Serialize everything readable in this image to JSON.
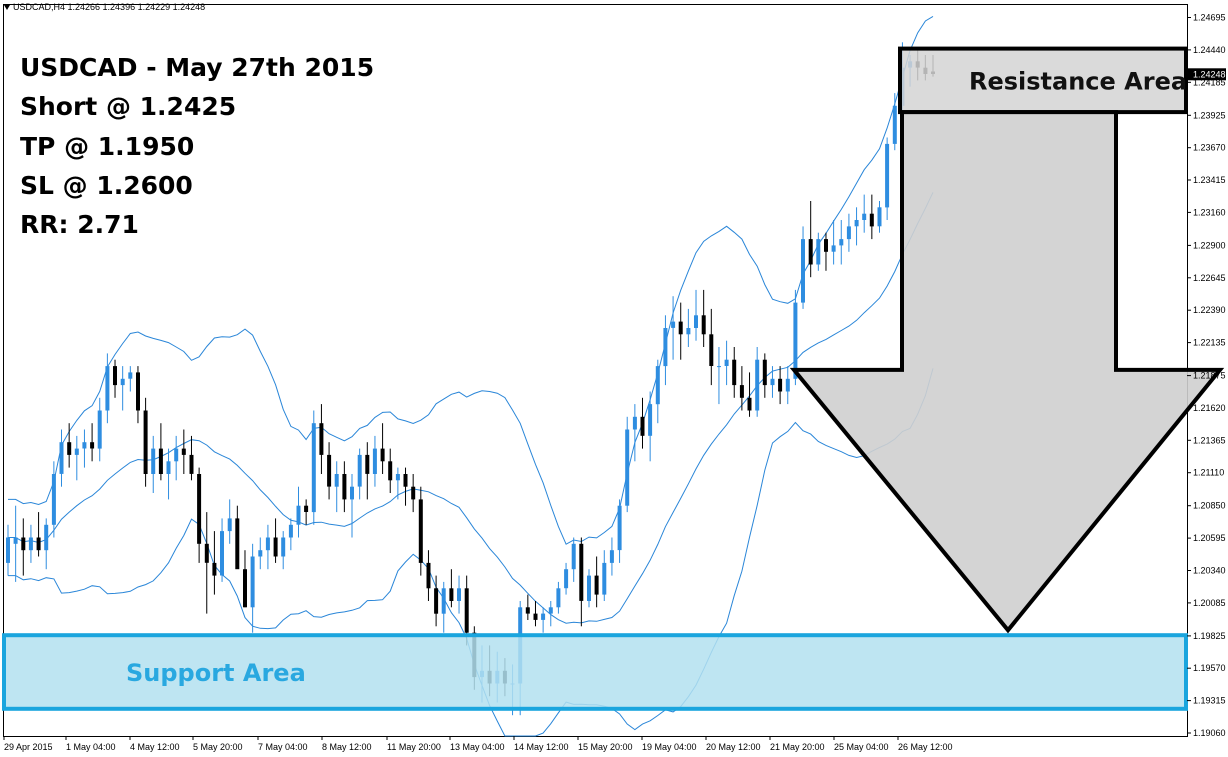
{
  "header": {
    "text": "USDCAD,H4  1.24266 1.24396 1.24229 1.24248"
  },
  "notes": [
    "USDCAD - May 27th 2015",
    "Short @ 1.2425",
    "TP @ 1.1950",
    "SL @ 1.2600",
    "RR: 2.71"
  ],
  "chart_data": {
    "type": "candlestick",
    "symbol": "USDCAD",
    "timeframe": "H4",
    "ylim": [
      1.1906,
      1.2477
    ],
    "y_ticks": [
      "1.24695",
      "1.24440",
      "1.24185",
      "1.23925",
      "1.23670",
      "1.23415",
      "1.23160",
      "1.22900",
      "1.22645",
      "1.22390",
      "1.22135",
      "1.21875",
      "1.21620",
      "1.21365",
      "1.21110",
      "1.20850",
      "1.20595",
      "1.20340",
      "1.20085",
      "1.19825",
      "1.19570",
      "1.19315",
      "1.19060"
    ],
    "x_ticks": [
      "29 Apr 2015",
      "1 May 04:00",
      "4 May 12:00",
      "5 May 20:00",
      "7 May 04:00",
      "8 May 12:00",
      "11 May 20:00",
      "13 May 04:00",
      "14 May 12:00",
      "15 May 20:00",
      "19 May 04:00",
      "20 May 12:00",
      "21 May 20:00",
      "25 May 04:00",
      "26 May 12:00"
    ],
    "last_price": "1.24248",
    "colors": {
      "up": "#2e8de0",
      "down": "#000000",
      "bands": "#2a86d8",
      "support_fill": "#b3e1f0",
      "support_border": "#1aa5de",
      "resistance_fill": "#d3d3d3",
      "arrow_fill": "#cfcfcf"
    },
    "candles": [
      [
        1.204,
        1.207,
        1.203,
        1.206
      ],
      [
        1.2055,
        1.2085,
        1.2025,
        1.206
      ],
      [
        1.206,
        1.2075,
        1.203,
        1.205
      ],
      [
        1.205,
        1.207,
        1.204,
        1.206
      ],
      [
        1.206,
        1.208,
        1.2045,
        1.205
      ],
      [
        1.205,
        1.2075,
        1.2035,
        1.207
      ],
      [
        1.207,
        1.212,
        1.206,
        1.211
      ],
      [
        1.211,
        1.2145,
        1.21,
        1.2135
      ],
      [
        1.2135,
        1.215,
        1.2115,
        1.2125
      ],
      [
        1.2125,
        1.214,
        1.2105,
        1.213
      ],
      [
        1.213,
        1.2145,
        1.2115,
        1.2135
      ],
      [
        1.2135,
        1.215,
        1.212,
        1.213
      ],
      [
        1.213,
        1.217,
        1.212,
        1.216
      ],
      [
        1.216,
        1.2205,
        1.215,
        1.2195
      ],
      [
        1.2195,
        1.22,
        1.217,
        1.218
      ],
      [
        1.218,
        1.2195,
        1.216,
        1.2185
      ],
      [
        1.2185,
        1.2195,
        1.2175,
        1.219
      ],
      [
        1.219,
        1.2195,
        1.215,
        1.216
      ],
      [
        1.216,
        1.217,
        1.21,
        1.211
      ],
      [
        1.211,
        1.214,
        1.2095,
        1.213
      ],
      [
        1.213,
        1.215,
        1.2105,
        1.211
      ],
      [
        1.211,
        1.213,
        1.209,
        1.212
      ],
      [
        1.212,
        1.214,
        1.2105,
        1.213
      ],
      [
        1.213,
        1.2145,
        1.211,
        1.2125
      ],
      [
        1.2125,
        1.214,
        1.2105,
        1.211
      ],
      [
        1.211,
        1.2115,
        1.204,
        1.2055
      ],
      [
        1.2055,
        1.208,
        1.2,
        1.204
      ],
      [
        1.204,
        1.2065,
        1.2015,
        1.203
      ],
      [
        1.203,
        1.2075,
        1.2025,
        1.2065
      ],
      [
        1.2065,
        1.209,
        1.2055,
        1.2075
      ],
      [
        1.2075,
        1.2085,
        1.204,
        1.2035
      ],
      [
        1.2035,
        1.205,
        1.2005,
        1.2005
      ],
      [
        1.2005,
        1.2055,
        1.1985,
        1.2045
      ],
      [
        1.2045,
        1.206,
        1.2035,
        1.205
      ],
      [
        1.205,
        1.207,
        1.2035,
        1.206
      ],
      [
        1.206,
        1.2075,
        1.204,
        1.2045
      ],
      [
        1.2045,
        1.2065,
        1.2035,
        1.206
      ],
      [
        1.206,
        1.2075,
        1.205,
        1.207
      ],
      [
        1.207,
        1.21,
        1.206,
        1.2085
      ],
      [
        1.2085,
        1.209,
        1.207,
        1.208
      ],
      [
        1.208,
        1.216,
        1.207,
        1.215
      ],
      [
        1.215,
        1.2165,
        1.211,
        1.2125
      ],
      [
        1.2125,
        1.2135,
        1.209,
        1.21
      ],
      [
        1.21,
        1.212,
        1.208,
        1.211
      ],
      [
        1.211,
        1.212,
        1.208,
        1.209
      ],
      [
        1.209,
        1.211,
        1.206,
        1.21
      ],
      [
        1.21,
        1.213,
        1.209,
        1.2125
      ],
      [
        1.2125,
        1.2135,
        1.209,
        1.211
      ],
      [
        1.211,
        1.214,
        1.21,
        1.213
      ],
      [
        1.213,
        1.215,
        1.211,
        1.212
      ],
      [
        1.212,
        1.213,
        1.2095,
        1.2105
      ],
      [
        1.2105,
        1.2115,
        1.209,
        1.211
      ],
      [
        1.211,
        1.2115,
        1.2085,
        1.21
      ],
      [
        1.21,
        1.211,
        1.208,
        1.209
      ],
      [
        1.209,
        1.21,
        1.203,
        1.204
      ],
      [
        1.204,
        1.205,
        1.201,
        1.202
      ],
      [
        1.202,
        1.203,
        1.199,
        1.2
      ],
      [
        1.2,
        1.2025,
        1.1985,
        1.202
      ],
      [
        1.202,
        1.2035,
        1.2005,
        1.201
      ],
      [
        1.201,
        1.203,
        1.2,
        1.202
      ],
      [
        1.202,
        1.203,
        1.1975,
        1.1985
      ],
      [
        1.1985,
        1.199,
        1.194,
        1.195
      ],
      [
        1.195,
        1.1975,
        1.193,
        1.1955
      ],
      [
        1.1955,
        1.1975,
        1.1935,
        1.1945
      ],
      [
        1.1945,
        1.197,
        1.193,
        1.1955
      ],
      [
        1.1955,
        1.1965,
        1.1935,
        1.1945
      ],
      [
        1.1945,
        1.196,
        1.192,
        1.1945
      ],
      [
        1.1945,
        1.201,
        1.192,
        1.2005
      ],
      [
        1.2005,
        1.2015,
        1.1995,
        1.2
      ],
      [
        1.2,
        1.201,
        1.199,
        1.1995
      ],
      [
        1.1995,
        1.2005,
        1.1985,
        1.2
      ],
      [
        1.2,
        1.201,
        1.199,
        1.2005
      ],
      [
        1.2005,
        1.2025,
        1.2,
        1.202
      ],
      [
        1.202,
        1.204,
        1.2015,
        1.2035
      ],
      [
        1.2035,
        1.206,
        1.2025,
        1.2055
      ],
      [
        1.2055,
        1.206,
        1.199,
        1.201
      ],
      [
        1.201,
        1.2035,
        1.2005,
        1.203
      ],
      [
        1.203,
        1.2045,
        1.2005,
        1.2015
      ],
      [
        1.2015,
        1.205,
        1.201,
        1.204
      ],
      [
        1.204,
        1.206,
        1.203,
        1.205
      ],
      [
        1.205,
        1.209,
        1.204,
        1.2085
      ],
      [
        1.2085,
        1.2155,
        1.208,
        1.2145
      ],
      [
        1.2145,
        1.2165,
        1.212,
        1.2155
      ],
      [
        1.2155,
        1.217,
        1.213,
        1.214
      ],
      [
        1.214,
        1.2175,
        1.212,
        1.2165
      ],
      [
        1.2165,
        1.22,
        1.215,
        1.2195
      ],
      [
        1.2195,
        1.2235,
        1.218,
        1.2225
      ],
      [
        1.2225,
        1.225,
        1.22,
        1.223
      ],
      [
        1.223,
        1.2245,
        1.22,
        1.222
      ],
      [
        1.222,
        1.224,
        1.221,
        1.2225
      ],
      [
        1.2225,
        1.2255,
        1.2215,
        1.2235
      ],
      [
        1.2235,
        1.2255,
        1.221,
        1.222
      ],
      [
        1.222,
        1.224,
        1.218,
        1.2195
      ],
      [
        1.2195,
        1.221,
        1.2165,
        1.2195
      ],
      [
        1.2195,
        1.2215,
        1.218,
        1.22
      ],
      [
        1.22,
        1.221,
        1.217,
        1.218
      ],
      [
        1.218,
        1.2195,
        1.216,
        1.217
      ],
      [
        1.217,
        1.219,
        1.2155,
        1.216
      ],
      [
        1.216,
        1.221,
        1.2155,
        1.22
      ],
      [
        1.22,
        1.2205,
        1.217,
        1.218
      ],
      [
        1.218,
        1.2195,
        1.217,
        1.2185
      ],
      [
        1.2185,
        1.2195,
        1.2165,
        1.2175
      ],
      [
        1.2175,
        1.2195,
        1.2165,
        1.2185
      ],
      [
        1.2185,
        1.2255,
        1.218,
        1.2245
      ],
      [
        1.2245,
        1.2305,
        1.224,
        1.2295
      ],
      [
        1.2295,
        1.2325,
        1.2265,
        1.2275
      ],
      [
        1.2275,
        1.23,
        1.227,
        1.2295
      ],
      [
        1.2295,
        1.23,
        1.227,
        1.2285
      ],
      [
        1.2285,
        1.231,
        1.2275,
        1.229
      ],
      [
        1.229,
        1.231,
        1.2275,
        1.2295
      ],
      [
        1.2295,
        1.2315,
        1.2285,
        1.2305
      ],
      [
        1.2305,
        1.232,
        1.229,
        1.231
      ],
      [
        1.231,
        1.233,
        1.23,
        1.2315
      ],
      [
        1.2315,
        1.233,
        1.2295,
        1.2305
      ],
      [
        1.2305,
        1.2325,
        1.23,
        1.232
      ],
      [
        1.232,
        1.2375,
        1.231,
        1.237
      ],
      [
        1.237,
        1.241,
        1.2365,
        1.24
      ],
      [
        1.24,
        1.245,
        1.2395,
        1.243
      ],
      [
        1.243,
        1.244,
        1.2415,
        1.2435
      ],
      [
        1.2435,
        1.2445,
        1.242,
        1.243
      ],
      [
        1.243,
        1.244,
        1.242,
        1.2425
      ],
      [
        1.2427,
        1.244,
        1.2423,
        1.2425
      ]
    ],
    "annotations": {
      "resistance_label": "Resistance Area",
      "support_label": "Support Area"
    },
    "resistance_zone": [
      1.2395,
      1.2445
    ],
    "support_zone": [
      1.1925,
      1.1983
    ],
    "arrow": {
      "top_price": 1.2395,
      "shoulder_price": 1.2192,
      "tip_price": 1.1987
    }
  }
}
